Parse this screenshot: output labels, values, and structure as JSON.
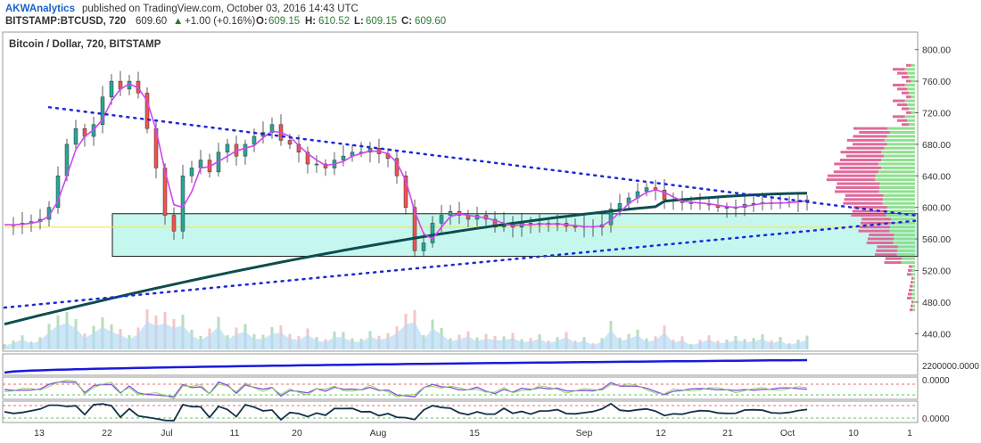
{
  "header": {
    "publisher": "AKWAnalytics",
    "published_text": "published on TradingView.com, October 03, 2016 14:43 UTC",
    "symbol": "BITSTAMP:BTCUSD, 720",
    "last_price": "609.60",
    "change": "+1.00 (+0.16%)",
    "o_label": "O:",
    "o_value": "609.15",
    "h_label": "H:",
    "h_value": "610.52",
    "l_label": "L:",
    "l_value": "609.15",
    "c_label": "C:",
    "c_value": "609.60"
  },
  "pane_title": "Bitcoin / Dollar, 720, BITSTAMP",
  "colors": {
    "up": "#26a69a",
    "down": "#ef5350",
    "ma_fast": "#e040fb",
    "ma_fast2": "#9c27b0",
    "ma_slow": "#0d4d4f",
    "trend_dotted": "#1e28d8",
    "zone_fill": "#c6f7ee",
    "zone_stroke": "#1a1a1a",
    "volume_area": "#b6dcf5",
    "obv_line": "#1a1adb",
    "rsi_line": "#8a55e0",
    "stoch_line": "#13304a",
    "green_hline": "#1fbf1f",
    "red_hline": "#e04040",
    "positive_text": "#2e7d32"
  },
  "chart_data": {
    "type": "candlestick",
    "x_axis_labels": [
      "13",
      "22",
      "Jul",
      "11",
      "20",
      "Aug",
      "15",
      "Sep",
      "12",
      "21",
      "Oct",
      "10",
      "1"
    ],
    "price_axis_ticks": [
      "800.00",
      "760.00",
      "720.00",
      "680.00",
      "640.00",
      "600.00",
      "560.00",
      "520.00",
      "480.00",
      "440.00"
    ],
    "ylim": [
      420,
      820
    ],
    "price_path": [
      [
        0,
        578
      ],
      [
        4,
        578
      ],
      [
        8,
        580
      ],
      [
        12,
        582
      ],
      [
        16,
        585
      ],
      [
        20,
        600
      ],
      [
        24,
        640
      ],
      [
        28,
        680
      ],
      [
        32,
        700
      ],
      [
        36,
        690
      ],
      [
        40,
        705
      ],
      [
        44,
        740
      ],
      [
        48,
        760
      ],
      [
        52,
        750
      ],
      [
        56,
        760
      ],
      [
        60,
        745
      ],
      [
        64,
        700
      ],
      [
        68,
        650
      ],
      [
        72,
        590
      ],
      [
        76,
        570
      ],
      [
        80,
        640
      ],
      [
        84,
        650
      ],
      [
        88,
        660
      ],
      [
        92,
        645
      ],
      [
        96,
        670
      ],
      [
        100,
        680
      ],
      [
        104,
        665
      ],
      [
        108,
        680
      ],
      [
        112,
        690
      ],
      [
        116,
        695
      ],
      [
        120,
        705
      ],
      [
        124,
        685
      ],
      [
        128,
        680
      ],
      [
        132,
        670
      ],
      [
        136,
        655
      ],
      [
        140,
        655
      ],
      [
        144,
        650
      ],
      [
        148,
        660
      ],
      [
        152,
        665
      ],
      [
        156,
        670
      ],
      [
        160,
        670
      ],
      [
        164,
        675
      ],
      [
        168,
        668
      ],
      [
        172,
        662
      ],
      [
        176,
        640
      ],
      [
        180,
        600
      ],
      [
        184,
        545
      ],
      [
        188,
        555
      ],
      [
        192,
        580
      ],
      [
        196,
        590
      ],
      [
        200,
        595
      ],
      [
        204,
        590
      ],
      [
        208,
        585
      ],
      [
        212,
        590
      ],
      [
        216,
        585
      ],
      [
        220,
        575
      ],
      [
        224,
        580
      ],
      [
        228,
        575
      ],
      [
        232,
        580
      ],
      [
        236,
        578
      ],
      [
        240,
        580
      ],
      [
        244,
        578
      ],
      [
        248,
        580
      ],
      [
        252,
        576
      ],
      [
        256,
        575
      ],
      [
        260,
        576
      ],
      [
        264,
        575
      ],
      [
        268,
        578
      ],
      [
        272,
        598
      ],
      [
        276,
        605
      ],
      [
        280,
        612
      ],
      [
        284,
        620
      ],
      [
        288,
        625
      ],
      [
        292,
        622
      ],
      [
        296,
        610
      ],
      [
        300,
        608
      ],
      [
        304,
        606
      ],
      [
        308,
        606
      ],
      [
        312,
        605
      ],
      [
        316,
        603
      ],
      [
        320,
        600
      ],
      [
        324,
        600
      ],
      [
        328,
        600
      ],
      [
        332,
        604
      ],
      [
        336,
        605
      ],
      [
        340,
        606
      ],
      [
        344,
        605
      ],
      [
        348,
        606
      ],
      [
        352,
        607
      ],
      [
        356,
        608
      ],
      [
        360,
        609.6
      ]
    ],
    "volume_profile_range": [
      470,
      780
    ],
    "notable_levels": {
      "consolidation_box": [
        538,
        592
      ],
      "yellow_line": 575
    },
    "sub_indicators": [
      {
        "name": "",
        "axis_label": "2200000.0000"
      },
      {
        "name": "",
        "axis_label": "0.0000"
      },
      {
        "name": "",
        "axis_label": "0.0000"
      }
    ]
  }
}
